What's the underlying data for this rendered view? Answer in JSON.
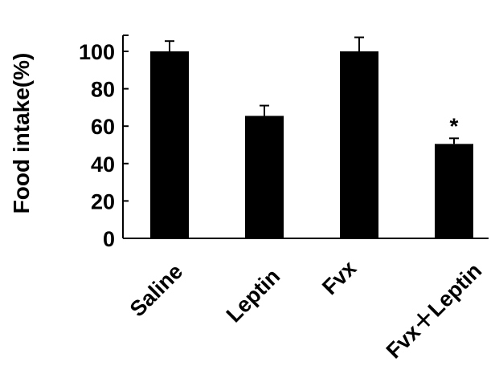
{
  "chart_data": {
    "type": "bar",
    "title": "",
    "xlabel": "",
    "ylabel": "Food intake(%)",
    "ylim": [
      0,
      110
    ],
    "yticks": [
      "0",
      "20",
      "40",
      "60",
      "80",
      "100"
    ],
    "grid": false,
    "categories": [
      "Saline",
      "Leptin",
      "Fvx",
      "Fvx＋Leptin"
    ],
    "values": [
      100,
      65.5,
      100,
      50.5
    ],
    "errors": [
      5.5,
      5.5,
      7.5,
      3
    ],
    "annotations": [
      "",
      "",
      "",
      "*"
    ],
    "bar_color": "#000000"
  }
}
